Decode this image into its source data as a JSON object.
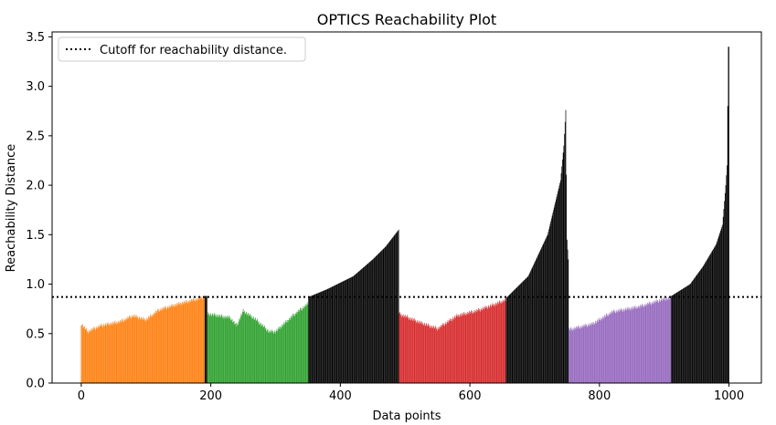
{
  "chart_data": {
    "type": "bar",
    "title": "OPTICS Reachability Plot",
    "xlabel": "Data points",
    "ylabel": "Reachability Distance",
    "xlim": [
      -45,
      1050
    ],
    "ylim": [
      0,
      3.55
    ],
    "xticks": [
      0,
      200,
      400,
      600,
      800,
      1000
    ],
    "yticks": [
      0.0,
      0.5,
      1.0,
      1.5,
      2.0,
      2.5,
      3.0,
      3.5
    ],
    "cutoff": 0.87,
    "legend": {
      "label": "Cutoff for reachability distance.",
      "placement": "top-left",
      "line_style": "dotted",
      "color": "#000000"
    },
    "bar_width": 1,
    "segments": [
      {
        "start": 0,
        "end": 190,
        "color": "#ff7f0e",
        "profile": [
          [
            0,
            0.6
          ],
          [
            10,
            0.52
          ],
          [
            30,
            0.58
          ],
          [
            60,
            0.62
          ],
          [
            80,
            0.68
          ],
          [
            100,
            0.64
          ],
          [
            120,
            0.74
          ],
          [
            150,
            0.8
          ],
          [
            185,
            0.86
          ],
          [
            190,
            0.87
          ]
        ]
      },
      {
        "start": 191,
        "end": 194,
        "color": "#000000",
        "profile": [
          [
            191,
            0.88
          ],
          [
            194,
            0.88
          ]
        ]
      },
      {
        "start": 195,
        "end": 350,
        "color": "#2ca02c",
        "profile": [
          [
            195,
            0.7
          ],
          [
            230,
            0.66
          ],
          [
            240,
            0.58
          ],
          [
            250,
            0.73
          ],
          [
            270,
            0.64
          ],
          [
            290,
            0.52
          ],
          [
            300,
            0.52
          ],
          [
            310,
            0.58
          ],
          [
            330,
            0.7
          ],
          [
            350,
            0.8
          ]
        ]
      },
      {
        "start": 351,
        "end": 490,
        "color": "#000000",
        "profile": [
          [
            351,
            0.87
          ],
          [
            380,
            0.95
          ],
          [
            420,
            1.08
          ],
          [
            450,
            1.25
          ],
          [
            470,
            1.38
          ],
          [
            490,
            1.55
          ]
        ]
      },
      {
        "start": 491,
        "end": 655,
        "color": "#d62728",
        "profile": [
          [
            491,
            0.7
          ],
          [
            520,
            0.62
          ],
          [
            550,
            0.55
          ],
          [
            580,
            0.68
          ],
          [
            610,
            0.73
          ],
          [
            640,
            0.8
          ],
          [
            655,
            0.84
          ]
        ]
      },
      {
        "start": 656,
        "end": 752,
        "color": "#000000",
        "profile": [
          [
            656,
            0.86
          ],
          [
            690,
            1.08
          ],
          [
            720,
            1.5
          ],
          [
            740,
            2.05
          ],
          [
            745,
            2.4
          ],
          [
            748,
            2.76
          ],
          [
            750,
            1.45
          ],
          [
            752,
            1.25
          ]
        ]
      },
      {
        "start": 753,
        "end": 910,
        "color": "#9467bd",
        "profile": [
          [
            753,
            0.54
          ],
          [
            790,
            0.6
          ],
          [
            820,
            0.72
          ],
          [
            860,
            0.77
          ],
          [
            900,
            0.85
          ],
          [
            910,
            0.86
          ]
        ]
      },
      {
        "start": 911,
        "end": 1000,
        "color": "#000000",
        "profile": [
          [
            911,
            0.88
          ],
          [
            940,
            1.0
          ],
          [
            960,
            1.18
          ],
          [
            980,
            1.4
          ],
          [
            990,
            1.6
          ],
          [
            995,
            2.0
          ],
          [
            997,
            2.2
          ],
          [
            999,
            3.4
          ],
          [
            1000,
            3.4
          ]
        ]
      }
    ]
  }
}
